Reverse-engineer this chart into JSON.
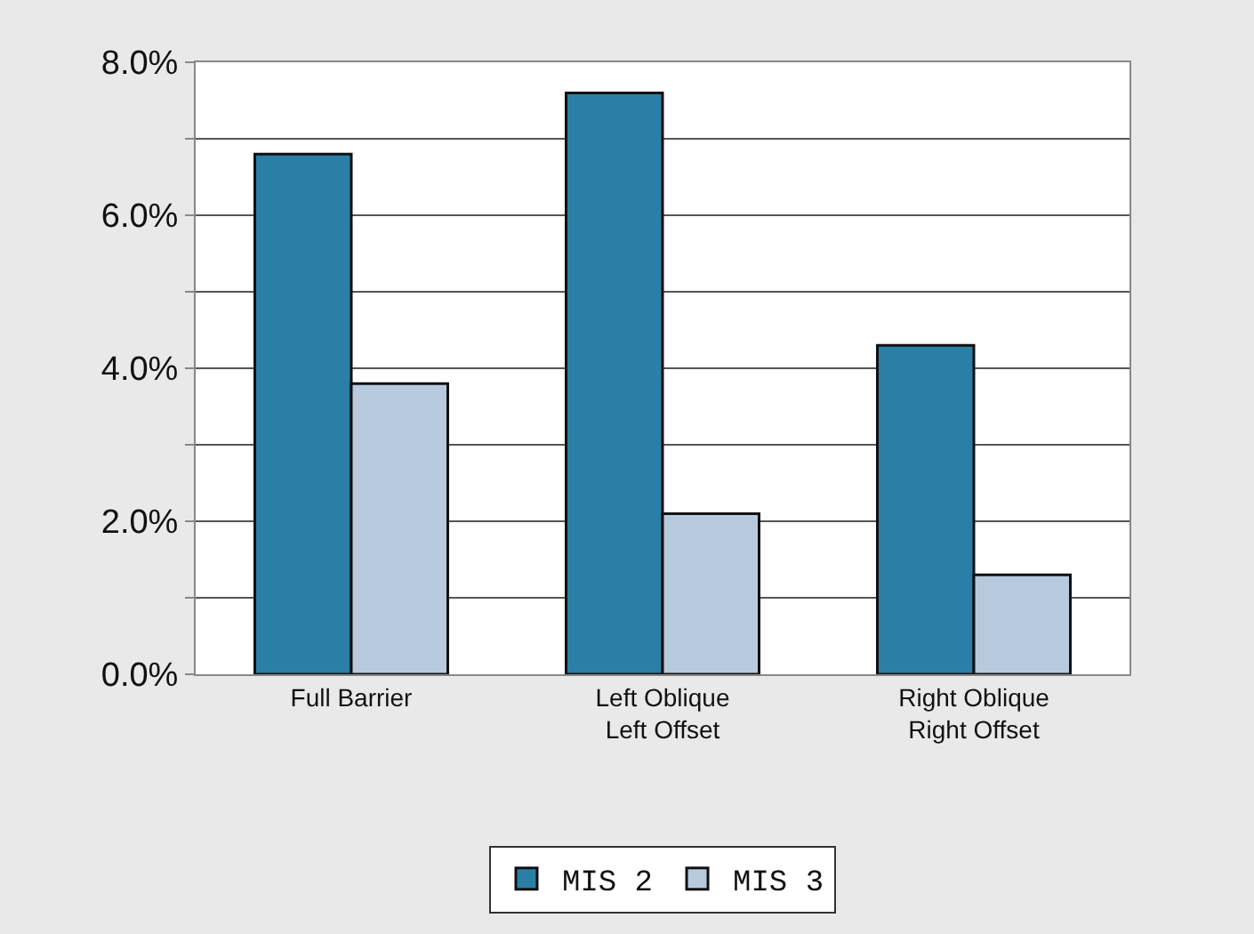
{
  "chart_data": {
    "type": "bar",
    "categories": [
      "Full Barrier",
      "Left Oblique\nLeft Offset",
      "Right Oblique\nRight Offset"
    ],
    "series": [
      {
        "name": "MIS 2",
        "color": "#2a7fa6",
        "values": [
          6.8,
          7.6,
          4.3
        ]
      },
      {
        "name": "MIS 3",
        "color": "#b7c9dd",
        "values": [
          3.8,
          2.1,
          1.3
        ]
      }
    ],
    "ylim": [
      0,
      8
    ],
    "yticks": [
      {
        "value": 0,
        "label": "0.0%"
      },
      {
        "value": 1,
        "label": null
      },
      {
        "value": 2,
        "label": "2.0%"
      },
      {
        "value": 3,
        "label": null
      },
      {
        "value": 4,
        "label": "4.0%"
      },
      {
        "value": 5,
        "label": null
      },
      {
        "value": 6,
        "label": "6.0%"
      },
      {
        "value": 7,
        "label": null
      },
      {
        "value": 8,
        "label": "8.0%"
      }
    ],
    "grid": "y",
    "legend": "bottom"
  }
}
